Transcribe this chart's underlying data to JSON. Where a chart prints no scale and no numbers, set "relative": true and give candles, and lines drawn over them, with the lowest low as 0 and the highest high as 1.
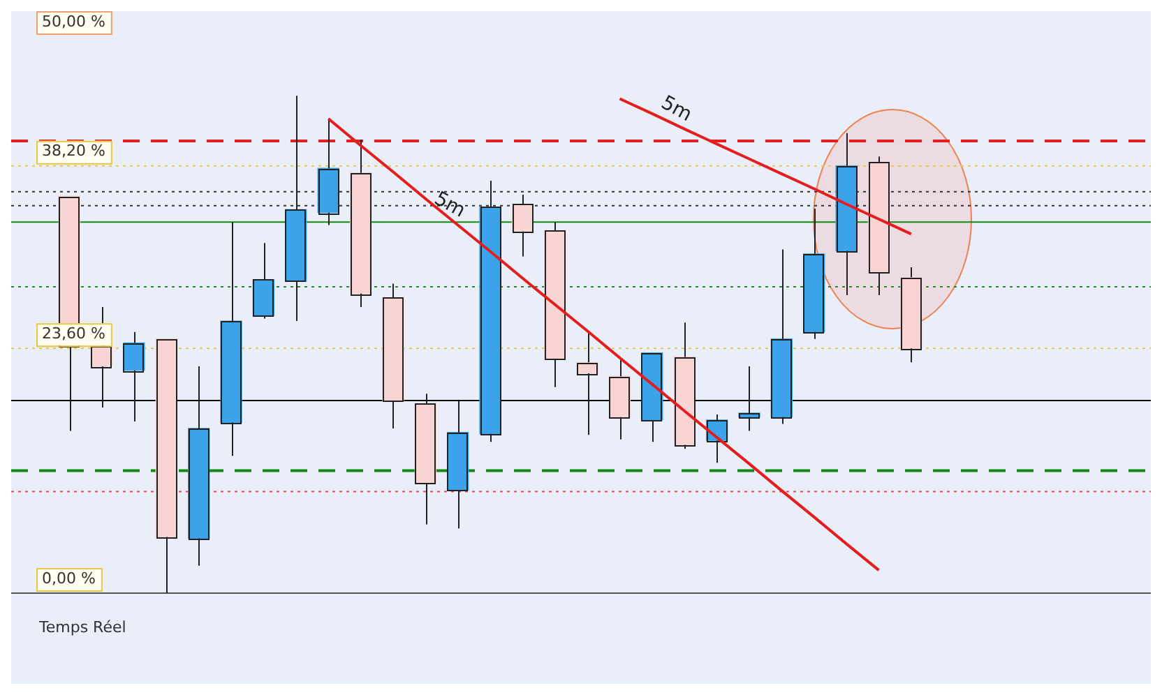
{
  "chart_data": {
    "type": "candlestick",
    "relative": true,
    "legend": false,
    "grid": false,
    "categories": [
      null,
      null,
      null,
      null,
      null,
      null,
      null,
      null,
      null,
      null,
      null,
      null,
      null,
      null,
      null,
      null,
      null,
      null,
      null,
      null,
      null,
      null,
      null,
      null,
      null,
      null,
      null
    ],
    "ohlc": [
      [
        0.798,
        0.798,
        0.326,
        0.497
      ],
      [
        0.497,
        0.575,
        0.373,
        0.456
      ],
      [
        0.448,
        0.525,
        0.345,
        0.503
      ],
      [
        0.511,
        0.511,
        0,
        0.113
      ],
      [
        0.11,
        0.456,
        0.055,
        0.331
      ],
      [
        0.343,
        0.746,
        0.276,
        0.547
      ],
      [
        0.558,
        0.704,
        0.552,
        0.63
      ],
      [
        0.627,
        1,
        0.547,
        0.771
      ],
      [
        0.765,
        0.953,
        0.74,
        0.854
      ],
      [
        0.845,
        0.912,
        0.575,
        0.602
      ],
      [
        0.594,
        0.622,
        0.331,
        0.387
      ],
      [
        0.381,
        0.401,
        0.138,
        0.221
      ],
      [
        0.207,
        0.387,
        0.13,
        0.323
      ],
      [
        0.32,
        0.829,
        0.304,
        0.776
      ],
      [
        0.782,
        0.801,
        0.677,
        0.727
      ],
      [
        0.729,
        0.746,
        0.414,
        0.47
      ],
      [
        0.464,
        0.525,
        0.318,
        0.442
      ],
      [
        0.436,
        0.47,
        0.309,
        0.354
      ],
      [
        0.348,
        0.483,
        0.304,
        0.483
      ],
      [
        0.475,
        0.544,
        0.29,
        0.298
      ],
      [
        0.307,
        0.359,
        0.262,
        0.348
      ],
      [
        0.354,
        0.456,
        0.326,
        0.362
      ],
      [
        0.354,
        0.691,
        0.34,
        0.511
      ],
      [
        0.525,
        0.773,
        0.511,
        0.682
      ],
      [
        0.688,
        0.925,
        0.599,
        0.859
      ],
      [
        0.867,
        0.878,
        0.599,
        0.644
      ],
      [
        0.635,
        0.655,
        0.464,
        0.492
      ]
    ],
    "colors": [
      "#f8d4d4",
      "#f8d4d4",
      "#3aa3ea",
      "#f8d4d4",
      "#3aa3ea",
      "#3aa3ea",
      "#3aa3ea",
      "#3aa3ea",
      "#3aa3ea",
      "#f8d4d4",
      "#f8d4d4",
      "#f8d4d4",
      "#3aa3ea",
      "#3aa3ea",
      "#f8d4d4",
      "#f8d4d4",
      "#f8d4d4",
      "#f8d4d4",
      "#3aa3ea",
      "#f8d4d4",
      "#3aa3ea",
      "#3aa3ea",
      "#3aa3ea",
      "#3aa3ea",
      "#3aa3ea",
      "#f8d4d4",
      "#f8d4d4"
    ],
    "series": [
      {
        "type": "line",
        "name": "5m",
        "color": "#e41e1e",
        "values": [
          null,
          null,
          null,
          null,
          null,
          null,
          null,
          null,
          0.954,
          0.9,
          0.847,
          0.793,
          0.74,
          0.687,
          0.633,
          0.58,
          0.527,
          0.473,
          0.42,
          0.366,
          0.313,
          0.26,
          0.206,
          0.153,
          0.099,
          0.046,
          null
        ]
      },
      {
        "type": "line",
        "name": "5m",
        "color": "#e41e1e",
        "values": [
          null,
          null,
          null,
          null,
          null,
          null,
          null,
          null,
          null,
          null,
          null,
          null,
          null,
          null,
          null,
          null,
          null,
          0.994,
          0.964,
          0.933,
          0.903,
          0.873,
          0.843,
          0.813,
          0.782,
          0.752,
          0.722
        ]
      }
    ],
    "ref_lines": [
      {
        "axis": "y",
        "value": 0.909,
        "color": "#e02020",
        "line_style": "dashed"
      },
      {
        "axis": "y",
        "value": 0.859,
        "color": "#e8c84a",
        "line_style": "dotted"
      },
      {
        "axis": "y",
        "value": 0.807,
        "color": "#333333",
        "line_style": "dotted"
      },
      {
        "axis": "y",
        "value": 0.779,
        "color": "#333333",
        "line_style": "dotted"
      },
      {
        "axis": "y",
        "value": 0.746,
        "color": "#108a10",
        "line_style": "solid"
      },
      {
        "axis": "y",
        "value": 0.616,
        "color": "#2a8a2a",
        "line_style": "dotted"
      },
      {
        "axis": "y",
        "value": 0.492,
        "color": "#e8c84a",
        "line_style": "dotted"
      },
      {
        "axis": "y",
        "value": 0.387,
        "color": "#000000",
        "line_style": "solid"
      },
      {
        "axis": "y",
        "value": 0.246,
        "color": "#108a10",
        "line_style": "dashed"
      },
      {
        "axis": "y",
        "value": 0.204,
        "color": "#e05050",
        "line_style": "dotted"
      },
      {
        "axis": "y",
        "value": 0,
        "color": "#555555",
        "line_style": "solid"
      }
    ],
    "annotations": [
      "50,00 %",
      {
        "text": "38,20 %",
        "y": 0.859
      },
      {
        "text": "23,60 %",
        "y": 0.492
      },
      {
        "text": "0,00 %",
        "y": 0
      },
      "Temps Réel"
    ]
  }
}
